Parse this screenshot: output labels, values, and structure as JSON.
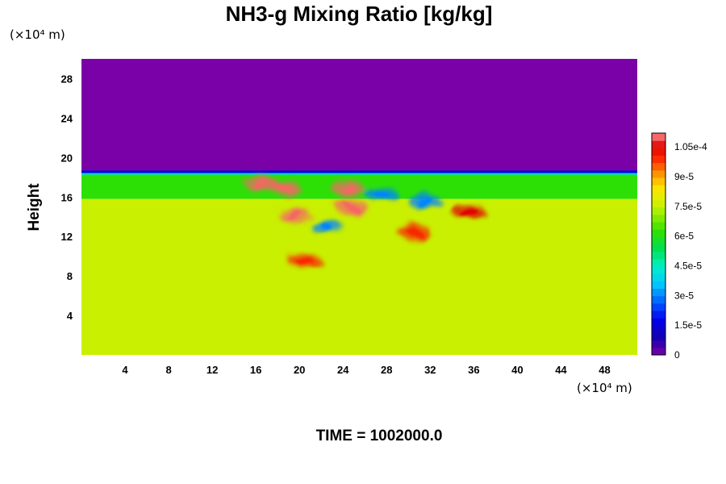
{
  "chart_data": {
    "type": "heatmap",
    "title": "NH3-g Mixing Ratio [kg/kg]",
    "ylabel": "Height",
    "xlabel": "",
    "x_unit": "(×10⁴ m)",
    "y_unit": "(×10⁴ m)",
    "xlim": [
      0,
      51
    ],
    "ylim": [
      0,
      30
    ],
    "x_ticks": [
      4,
      8,
      12,
      16,
      20,
      24,
      28,
      32,
      36,
      40,
      44,
      48
    ],
    "y_ticks": [
      4,
      8,
      12,
      16,
      20,
      24,
      28
    ],
    "colorbar": {
      "min": 0,
      "max": 0.000112,
      "ticks": [
        0,
        1.5e-05,
        3e-05,
        4.5e-05,
        6e-05,
        7.5e-05,
        9e-05,
        0.000105
      ],
      "tick_labels": [
        "0",
        "1.5e-5",
        "3e-5",
        "4.5e-5",
        "6e-5",
        "7.5e-5",
        "9e-5",
        "1.05e-4"
      ]
    },
    "regions": [
      {
        "name": "upper-layer",
        "y_range": [
          18.6,
          30
        ],
        "value": 0
      },
      {
        "name": "transition-layer",
        "y_range": [
          15.8,
          18.6
        ],
        "value": 6.2e-05
      },
      {
        "name": "lower-layer",
        "y_range": [
          0,
          15.8
        ],
        "value": 7.6e-05
      }
    ],
    "features": [
      {
        "x": 16.5,
        "y": 17.3,
        "value": 0.00011
      },
      {
        "x": 18.5,
        "y": 17.0,
        "value": 0.00011
      },
      {
        "x": 19.5,
        "y": 14.2,
        "value": 0.00011
      },
      {
        "x": 24.8,
        "y": 15.0,
        "value": 0.00011
      },
      {
        "x": 24.5,
        "y": 16.8,
        "value": 0.00011
      },
      {
        "x": 35.5,
        "y": 14.5,
        "value": 0.000105
      },
      {
        "x": 30.5,
        "y": 12.5,
        "value": 0.0001
      },
      {
        "x": 20.5,
        "y": 9.5,
        "value": 0.0001
      },
      {
        "x": 22.5,
        "y": 13.0,
        "value": 3e-05
      },
      {
        "x": 27.5,
        "y": 16.3,
        "value": 3e-05
      },
      {
        "x": 31.5,
        "y": 15.5,
        "value": 3e-05
      }
    ]
  },
  "footer": {
    "time_label": "TIME = 1002000.0"
  }
}
